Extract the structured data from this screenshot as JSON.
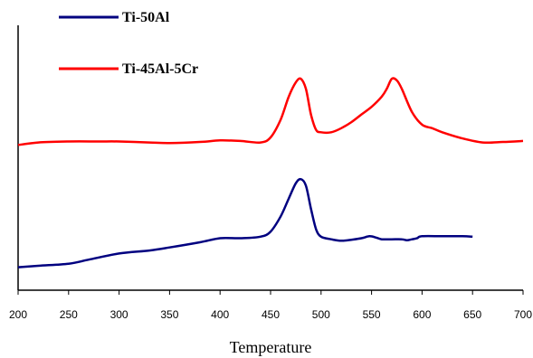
{
  "chart_data": {
    "type": "line",
    "title": "",
    "xlabel": "Temperature",
    "ylabel": "",
    "xlim": [
      200,
      700
    ],
    "xticks": [
      200,
      250,
      300,
      350,
      400,
      450,
      500,
      550,
      600,
      650,
      700
    ],
    "y_axis_labels_shown": false,
    "grid": false,
    "legend_position": "top-left",
    "series": [
      {
        "name": "Ti-50Al",
        "color": "#000080",
        "x": [
          200,
          220,
          250,
          270,
          300,
          330,
          350,
          380,
          400,
          420,
          440,
          450,
          460,
          468,
          475,
          480,
          485,
          490,
          495,
          500,
          510,
          520,
          530,
          540,
          548,
          555,
          560,
          570,
          580,
          585,
          590,
          595,
          600,
          620,
          640,
          650
        ],
        "y": [
          0.5,
          0.8,
          1.2,
          2.0,
          3.2,
          3.8,
          4.4,
          5.4,
          6.2,
          6.2,
          6.5,
          7.5,
          10.5,
          14.0,
          17.0,
          17.8,
          16.5,
          12.0,
          8.0,
          6.5,
          6.0,
          5.7,
          5.9,
          6.2,
          6.6,
          6.3,
          6.0,
          6.0,
          6.0,
          5.8,
          6.0,
          6.2,
          6.6,
          6.6,
          6.6,
          6.5
        ]
      },
      {
        "name": "Ti-45Al-5Cr",
        "color": "#FF0000",
        "x": [
          200,
          220,
          250,
          280,
          300,
          330,
          350,
          380,
          400,
          420,
          440,
          450,
          460,
          468,
          475,
          480,
          485,
          490,
          495,
          500,
          510,
          520,
          530,
          540,
          550,
          560,
          565,
          570,
          575,
          580,
          590,
          600,
          610,
          620,
          640,
          660,
          680,
          700
        ],
        "y": [
          24.5,
          25.0,
          25.2,
          25.2,
          25.2,
          25.0,
          24.9,
          25.1,
          25.4,
          25.3,
          25.0,
          26.0,
          29.5,
          34.0,
          36.8,
          37.5,
          35.5,
          30.5,
          27.5,
          27.0,
          27.0,
          27.8,
          29.0,
          30.5,
          32.0,
          34.0,
          35.5,
          37.5,
          37.2,
          35.5,
          31.0,
          28.5,
          27.8,
          27.0,
          25.8,
          25.0,
          25.1,
          25.3
        ]
      }
    ]
  },
  "ylim": [
    -4,
    48
  ]
}
